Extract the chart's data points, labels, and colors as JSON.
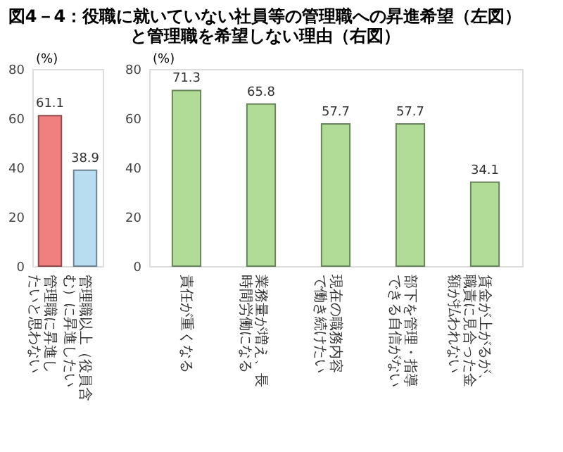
{
  "chart_data": [
    {
      "type": "bar",
      "title": "図4－4：役職に就いていない社員等の管理職への昇進希望（左図）と管理職を希望しない理由（右図）",
      "ylabel": "(%)",
      "categories": [
        "管理職に昇進したいと思わない",
        "管理職以上（役員含む）に昇進したい"
      ],
      "values": [
        61.1,
        38.9
      ],
      "colors": [
        "#f08080",
        "#b8dcf0"
      ],
      "ylim": [
        0,
        80
      ],
      "yticks": [
        0,
        20,
        40,
        60,
        80
      ],
      "grid": false,
      "data_labels": true
    },
    {
      "type": "bar",
      "ylabel": "(%)",
      "categories": [
        "責任が重くなる",
        "業務量が増え、長時間労働になる",
        "現在の職務内容で働き続けたい",
        "部下を管理・指導できる自信がない",
        "賃金が上がるが、職責に見合った金額が払われない"
      ],
      "values": [
        71.3,
        65.8,
        57.7,
        57.7,
        34.1
      ],
      "color": "#b0dc98",
      "ylim": [
        0,
        80
      ],
      "yticks": [
        0,
        20,
        40,
        60,
        80
      ],
      "grid": false,
      "data_labels": true
    }
  ]
}
